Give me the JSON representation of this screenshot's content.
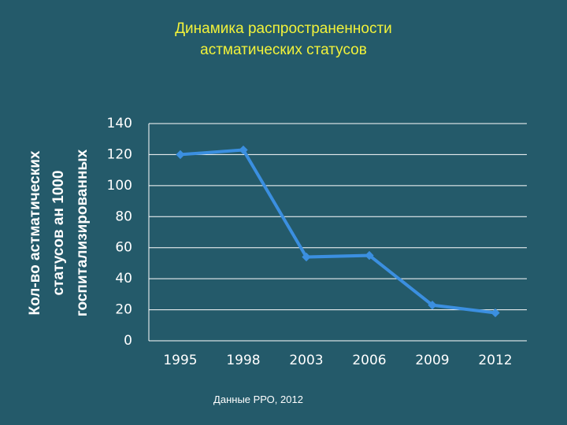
{
  "chart_data": {
    "type": "line",
    "title": [
      "Динамика распространенности",
      "астматических статусов"
    ],
    "y_label": [
      "Кол-во астматических",
      "статусов ан 1000",
      "госпитализированных"
    ],
    "source": "Данные РРО, 2012",
    "categories": [
      "1995",
      "1998",
      "2003",
      "2006",
      "2009",
      "2012"
    ],
    "values": [
      120,
      123,
      54,
      55,
      23,
      18
    ],
    "color": "#3b8fe0",
    "ylim": [
      0,
      140
    ],
    "yticks": [
      0,
      20,
      40,
      60,
      80,
      100,
      120,
      140
    ],
    "grid": true
  }
}
